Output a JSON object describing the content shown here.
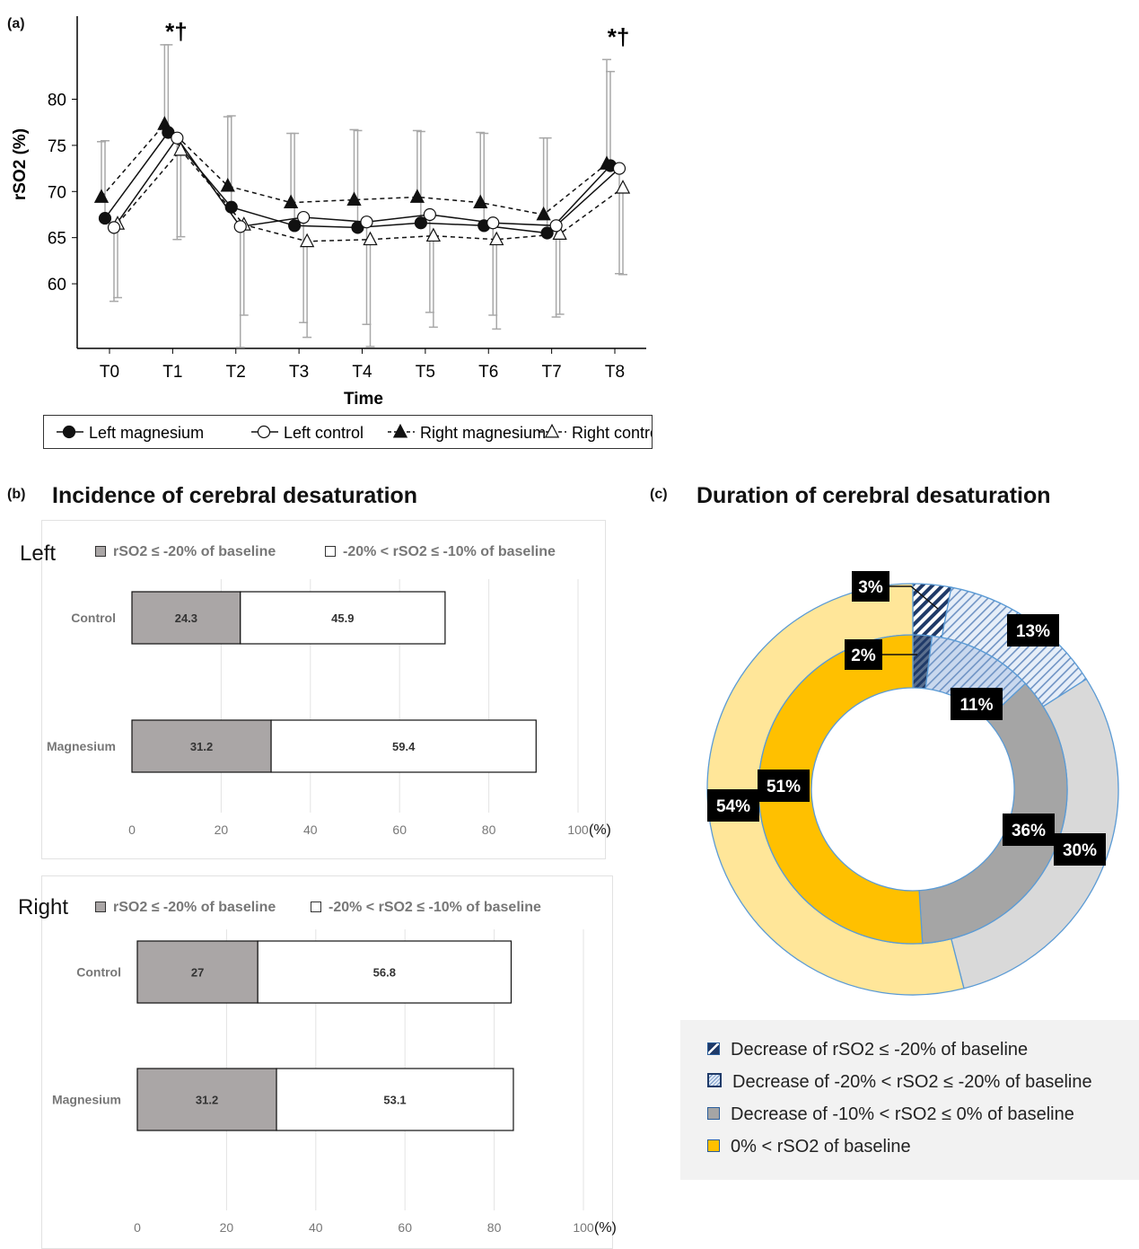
{
  "panel_a": {
    "tag": "(a)",
    "chart_data": {
      "type": "line",
      "ylabel": "rSO2 (%)",
      "xlabel": "Time",
      "categories": [
        "T0",
        "T1",
        "T2",
        "T3",
        "T4",
        "T5",
        "T6",
        "T7",
        "T8"
      ],
      "yticks": [
        60,
        65,
        70,
        75,
        80
      ],
      "ylim": [
        53,
        89
      ],
      "series": [
        {
          "name": "Left magnesium",
          "marker": "filled-circle",
          "dash": false,
          "values": [
            67.1,
            76.4,
            68.3,
            66.3,
            66.1,
            66.6,
            66.3,
            65.5,
            72.8
          ],
          "err_up": [
            75.5,
            85.9,
            78.2,
            76.3,
            76.6,
            76.5,
            76.3,
            75.8,
            83.0
          ]
        },
        {
          "name": "Left control",
          "marker": "open-circle",
          "dash": false,
          "values": [
            66.1,
            75.8,
            66.2,
            67.2,
            66.7,
            67.5,
            66.6,
            66.3,
            72.5
          ],
          "err_low": [
            58.1,
            64.8,
            53.1,
            55.8,
            55.6,
            56.9,
            56.6,
            56.4,
            61.1
          ]
        },
        {
          "name": "Right magnesium",
          "marker": "filled-triangle",
          "dash": true,
          "values": [
            69.4,
            77.3,
            70.6,
            68.8,
            69.1,
            69.4,
            68.8,
            67.5,
            73.0
          ],
          "err_up": [
            75.4,
            85.9,
            78.1,
            76.3,
            76.7,
            76.6,
            76.4,
            75.8,
            84.3
          ]
        },
        {
          "name": "Right control",
          "marker": "open-triangle",
          "dash": true,
          "values": [
            66.5,
            74.5,
            66.4,
            64.6,
            64.8,
            65.2,
            64.8,
            65.4,
            70.4
          ],
          "err_low": [
            58.5,
            65.1,
            56.6,
            54.2,
            53.2,
            55.3,
            55.1,
            56.7,
            61.0
          ]
        }
      ],
      "annotations": [
        {
          "at": "T1",
          "text": "*†"
        },
        {
          "at": "T8",
          "text": "*†"
        }
      ],
      "legend_position": "bottom"
    }
  },
  "panel_b": {
    "tag": "(b)",
    "title": "Incidence of cerebral desaturation",
    "legend": [
      "rSO2 ≤ -20% of baseline",
      "-20% < rSO2 ≤ -10% of baseline"
    ],
    "unit": "(%)",
    "xticks": [
      0,
      20,
      40,
      60,
      80,
      100
    ],
    "chart_data": [
      {
        "type": "bar",
        "orientation": "horizontal-stacked",
        "side": "Left",
        "categories": [
          "Control",
          "Magnesium"
        ],
        "series": [
          {
            "name": "rSO2 ≤ -20% of baseline",
            "values": [
              24.3,
              31.2
            ],
            "color": "#aaa6a6"
          },
          {
            "name": "-20% < rSO2 ≤ -10% of baseline",
            "values": [
              45.9,
              59.4
            ],
            "color": "#ffffff"
          }
        ],
        "xlim": [
          0,
          100
        ]
      },
      {
        "type": "bar",
        "orientation": "horizontal-stacked",
        "side": "Right",
        "categories": [
          "Control",
          "Magnesium"
        ],
        "series": [
          {
            "name": "rSO2 ≤ -20% of baseline",
            "values": [
              27,
              31.2
            ],
            "color": "#aaa6a6"
          },
          {
            "name": "-20% < rSO2 ≤ -10% of baseline",
            "values": [
              56.8,
              53.1
            ],
            "color": "#ffffff"
          }
        ],
        "xlim": [
          0,
          100
        ]
      }
    ]
  },
  "panel_c": {
    "tag": "(c)",
    "title": "Duration of cerebral desaturation",
    "chart_data": {
      "type": "pie",
      "style": "double-donut",
      "rings": [
        {
          "ring": "outer",
          "values": [
            3,
            13,
            30,
            54
          ],
          "labels": [
            "3%",
            "13%",
            "30%",
            "54%"
          ]
        },
        {
          "ring": "inner",
          "values": [
            2,
            11,
            36,
            51
          ],
          "labels": [
            "2%",
            "11%",
            "36%",
            "51%"
          ]
        }
      ],
      "legend": [
        "Decrease of rSO2 ≤ -20% of baseline",
        "Decrease of -20% < rSO2 ≤ -20% of baseline",
        "Decrease of -10% < rSO2 ≤ 0% of baseline",
        "0% < rSO2 of baseline"
      ]
    }
  }
}
